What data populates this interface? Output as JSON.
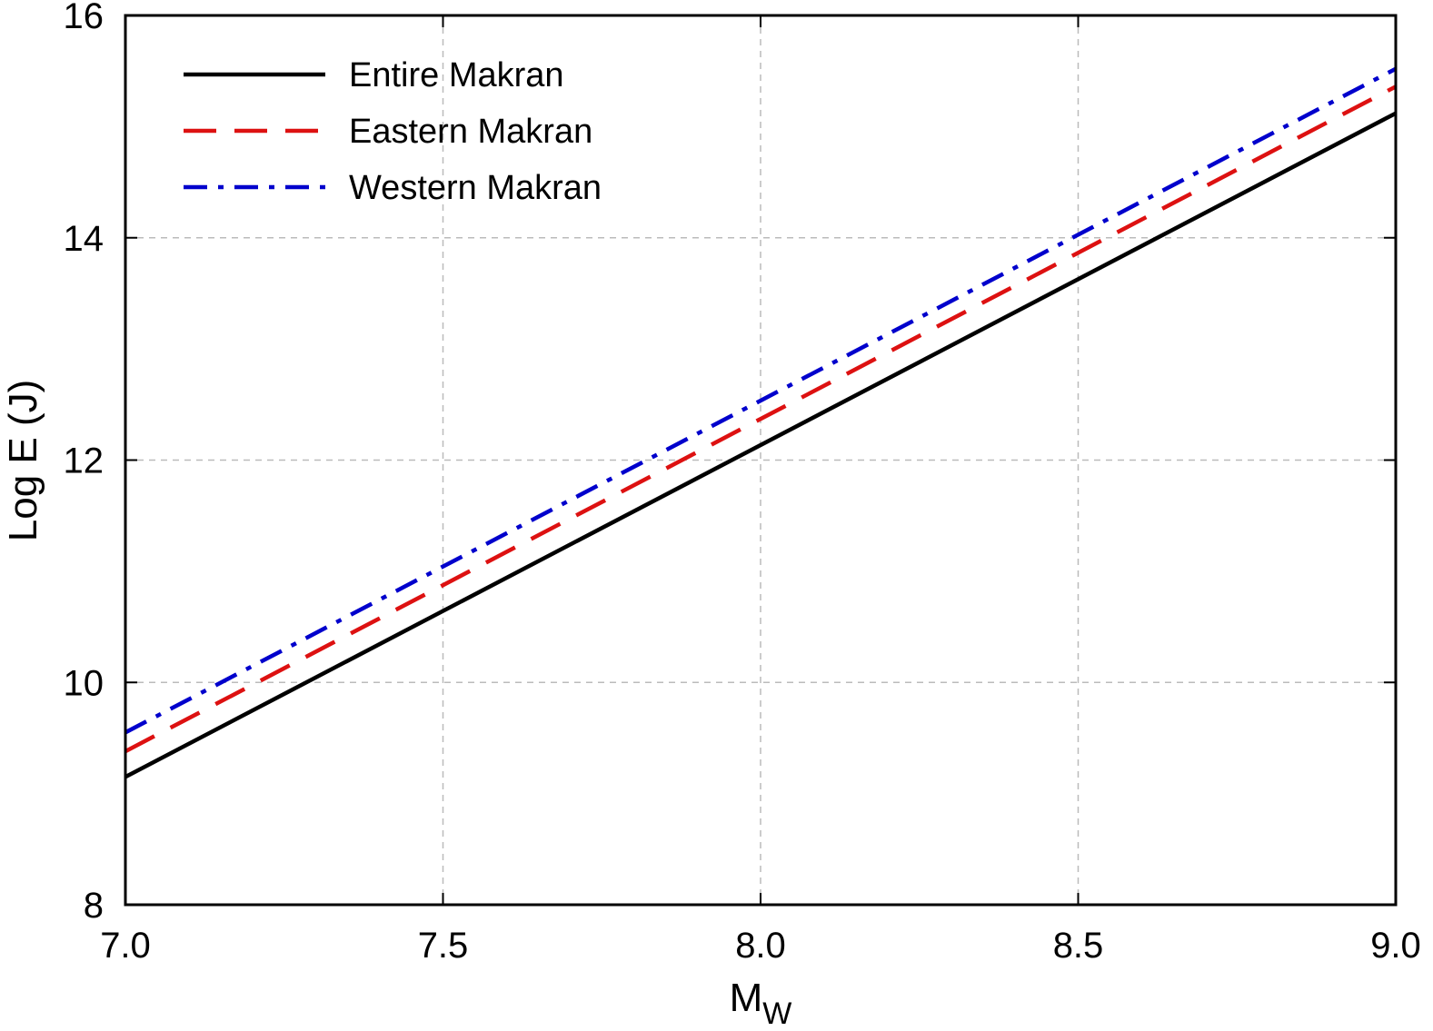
{
  "chart_data": {
    "type": "line",
    "x": [
      7.0,
      9.0
    ],
    "xlim": [
      7.0,
      9.0
    ],
    "ylim": [
      8,
      16
    ],
    "xticks": [
      "7.0",
      "7.5",
      "8.0",
      "8.5",
      "9.0"
    ],
    "yticks": [
      "8",
      "10",
      "12",
      "14",
      "16"
    ],
    "xlabel": "M",
    "xlabel_sub": "W",
    "ylabel": "Log E (J)",
    "grid": true,
    "legend_position": "top-left",
    "series": [
      {
        "name": "Entire Makran",
        "color": "#000000",
        "style": "solid",
        "values": [
          9.15,
          15.12
        ]
      },
      {
        "name": "Eastern Makran",
        "color": "#dd1111",
        "style": "dashed",
        "values": [
          9.38,
          15.36
        ]
      },
      {
        "name": "Western Makran",
        "color": "#0000cc",
        "style": "dashdot",
        "values": [
          9.55,
          15.52
        ]
      }
    ]
  }
}
